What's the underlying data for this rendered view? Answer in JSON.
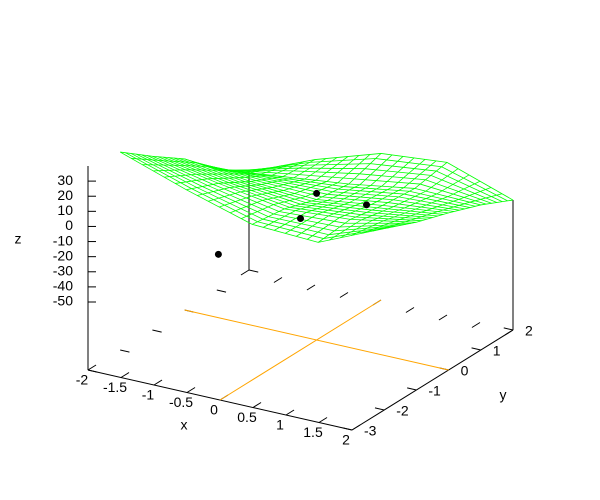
{
  "chart_data": {
    "type": "surface3d",
    "xlabel": "x",
    "ylabel": "y",
    "zlabel": "z",
    "xlim": [
      -2,
      2
    ],
    "ylim": [
      -3,
      2
    ],
    "zlim": [
      -50,
      40
    ],
    "xticks": [
      -2,
      -1.5,
      -1,
      -0.5,
      0,
      0.5,
      1,
      1.5,
      2
    ],
    "yticks": [
      -3,
      -2,
      -1,
      0,
      1,
      2
    ],
    "zticks": [
      -50,
      -40,
      -30,
      -20,
      -10,
      0,
      10,
      20,
      30
    ],
    "zeroaxis_color": "#ffa500",
    "surface": {
      "color": "#00ff00",
      "x": [
        -2,
        -1,
        0,
        1,
        2
      ],
      "y": [
        -2,
        -1,
        0,
        1,
        2
      ],
      "z": [
        [
          36,
          21,
          8,
          6,
          25
        ],
        [
          20,
          12,
          5,
          8,
          16
        ],
        [
          5,
          0,
          -2,
          4,
          9
        ],
        [
          -15,
          -10,
          -5,
          2,
          1
        ],
        [
          -30,
          -12,
          2,
          6,
          -9
        ]
      ]
    },
    "points": {
      "color": "#000000",
      "x": [
        -1,
        0,
        0,
        1
      ],
      "y": [
        -1,
        -0.5,
        0,
        -0.5
      ],
      "z": [
        -35,
        -8,
        2,
        11
      ]
    }
  }
}
